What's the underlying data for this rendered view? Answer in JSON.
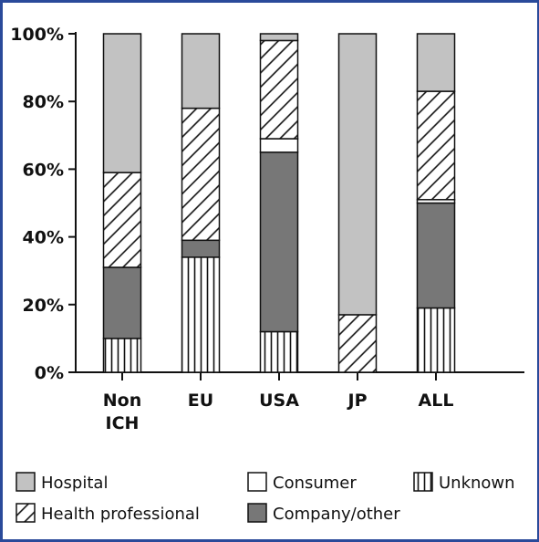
{
  "chart_data": {
    "type": "bar",
    "stacked": true,
    "percent": true,
    "categories": [
      [
        "Non",
        "ICH"
      ],
      [
        "EU"
      ],
      [
        "USA"
      ],
      [
        "JP"
      ],
      [
        "ALL"
      ]
    ],
    "category_names": [
      "Non ICH",
      "EU",
      "USA",
      "JP",
      "ALL"
    ],
    "ylim": [
      0,
      100
    ],
    "yticks": [
      "0%",
      "20%",
      "40%",
      "60%",
      "80%",
      "100%"
    ],
    "ytick_values": [
      0,
      20,
      40,
      60,
      80,
      100
    ],
    "legend_position": "bottom",
    "series": [
      {
        "name": "Unknown",
        "pattern": "vertical",
        "values": [
          10,
          34,
          12,
          0,
          19
        ]
      },
      {
        "name": "Company/other",
        "pattern": "dark",
        "values": [
          21,
          5,
          53,
          0,
          31
        ]
      },
      {
        "name": "Consumer",
        "pattern": "white",
        "values": [
          0,
          0,
          4,
          0,
          1
        ]
      },
      {
        "name": "Health professional",
        "pattern": "hatch",
        "values": [
          28,
          39,
          29,
          17,
          32
        ]
      },
      {
        "name": "Hospital",
        "pattern": "light",
        "values": [
          41,
          22,
          2,
          83,
          17
        ]
      }
    ],
    "legend_order": [
      "Hospital",
      "Consumer",
      "Unknown",
      "Health professional",
      "Company/other"
    ]
  },
  "colors": {
    "light": "#c2c2c2",
    "dark": "#777777",
    "white": "#ffffff",
    "frame": "#2a4a9a"
  }
}
